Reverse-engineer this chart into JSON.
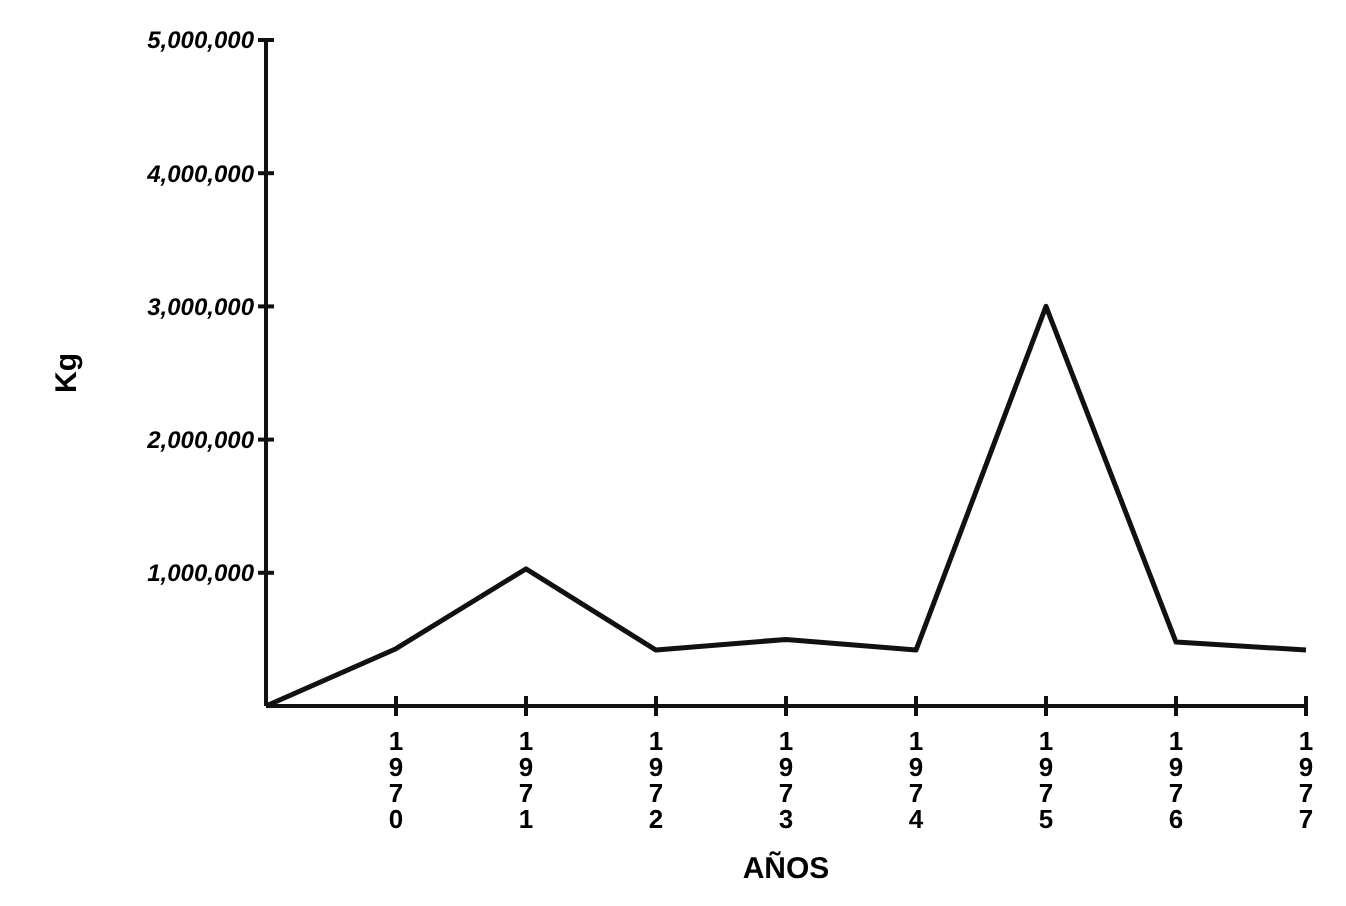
{
  "chart_data": {
    "type": "line",
    "xlabel": "AÑOS",
    "ylabel": "Kg",
    "x": [
      1969,
      1970,
      1971,
      1972,
      1973,
      1974,
      1975,
      1976,
      1977
    ],
    "values": [
      0,
      430000,
      1030000,
      420000,
      500000,
      420000,
      3000000,
      480000,
      420000
    ],
    "color": "#111111",
    "xlim": [
      1969,
      1977
    ],
    "xticks": [
      1970,
      1971,
      1972,
      1973,
      1974,
      1975,
      1976,
      1977
    ],
    "ylim": [
      0,
      5000000
    ],
    "yticks": [
      {
        "value": 1000000,
        "label": "1,000,000"
      },
      {
        "value": 2000000,
        "label": "2,000,000"
      },
      {
        "value": 3000000,
        "label": "3,000,000"
      },
      {
        "value": 4000000,
        "label": "4,000,000"
      },
      {
        "value": 5000000,
        "label": "5,000,000"
      }
    ],
    "marker": "none",
    "line_style": "solid"
  }
}
